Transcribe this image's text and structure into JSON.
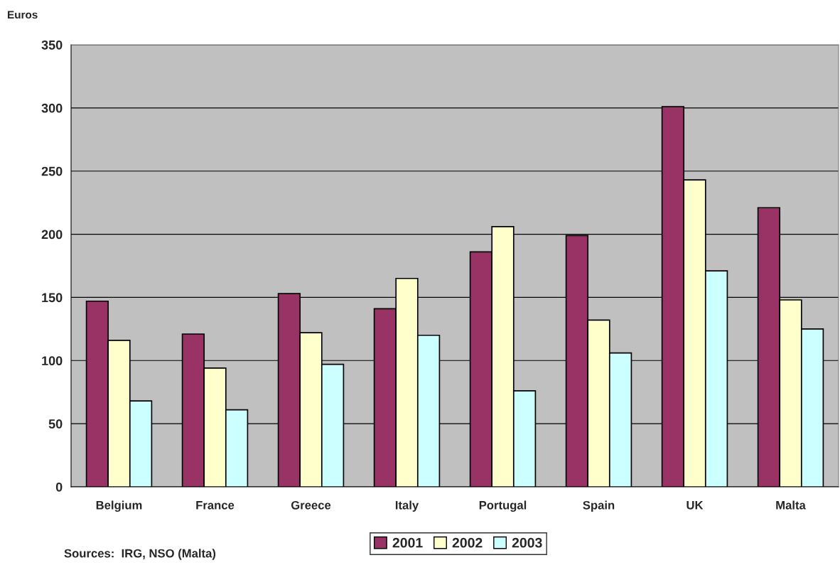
{
  "chart_data": {
    "type": "bar",
    "ylabel": "Euros",
    "categories": [
      "Belgium",
      "France",
      "Greece",
      "Italy",
      "Portugal",
      "Spain",
      "UK",
      "Malta"
    ],
    "series": [
      {
        "name": "2001",
        "color": "#993366",
        "values": [
          147,
          121,
          153,
          141,
          186,
          199,
          301,
          221
        ]
      },
      {
        "name": "2002",
        "color": "#ffffcc",
        "values": [
          116,
          94,
          122,
          165,
          206,
          132,
          243,
          148
        ]
      },
      {
        "name": "2003",
        "color": "#ccffff",
        "values": [
          68,
          61,
          97,
          120,
          76,
          106,
          171,
          125
        ]
      }
    ],
    "ylim": [
      0,
      350
    ],
    "yticks": [
      0,
      50,
      100,
      150,
      200,
      250,
      300,
      350
    ],
    "grid": "y",
    "legend": "bottom",
    "annotations": [
      "Sources:  IRG, NSO (Malta)"
    ]
  }
}
